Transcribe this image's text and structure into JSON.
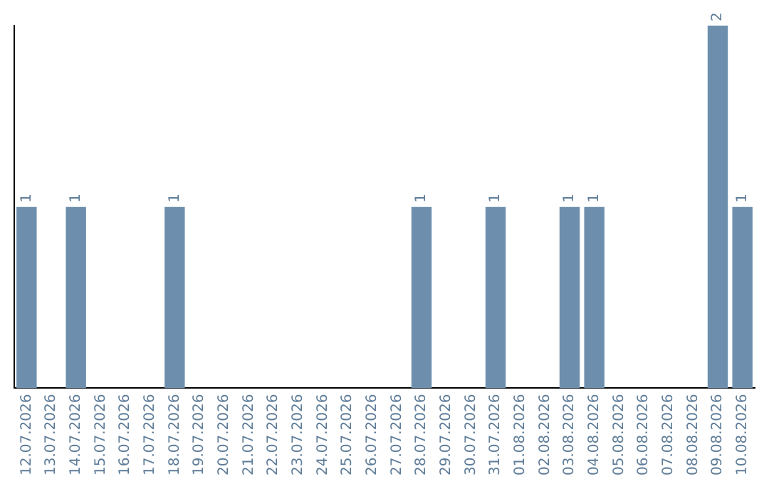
{
  "chart_data": {
    "type": "bar",
    "categories": [
      "12.07.2026",
      "13.07.2026",
      "14.07.2026",
      "15.07.2026",
      "16.07.2026",
      "17.07.2026",
      "18.07.2026",
      "19.07.2026",
      "20.07.2026",
      "21.07.2026",
      "22.07.2026",
      "23.07.2026",
      "24.07.2026",
      "25.07.2026",
      "26.07.2026",
      "27.07.2026",
      "28.07.2026",
      "29.07.2026",
      "30.07.2026",
      "31.07.2026",
      "01.08.2026",
      "02.08.2026",
      "03.08.2026",
      "04.08.2026",
      "05.08.2026",
      "06.08.2026",
      "07.08.2026",
      "08.08.2026",
      "09.08.2026",
      "10.08.2026"
    ],
    "values": [
      1,
      0,
      1,
      0,
      0,
      0,
      1,
      0,
      0,
      0,
      0,
      0,
      0,
      0,
      0,
      0,
      1,
      0,
      0,
      1,
      0,
      0,
      1,
      1,
      0,
      0,
      0,
      0,
      2,
      1
    ],
    "value_labels": [
      "1",
      null,
      "1",
      null,
      null,
      null,
      "1",
      null,
      null,
      null,
      null,
      null,
      null,
      null,
      null,
      null,
      "1",
      null,
      null,
      "1",
      null,
      null,
      "1",
      "1",
      null,
      null,
      null,
      null,
      "2",
      "1"
    ],
    "color": "#6d8fad",
    "relative": false,
    "tick_labels": "x",
    "grid": false,
    "legend": false
  }
}
